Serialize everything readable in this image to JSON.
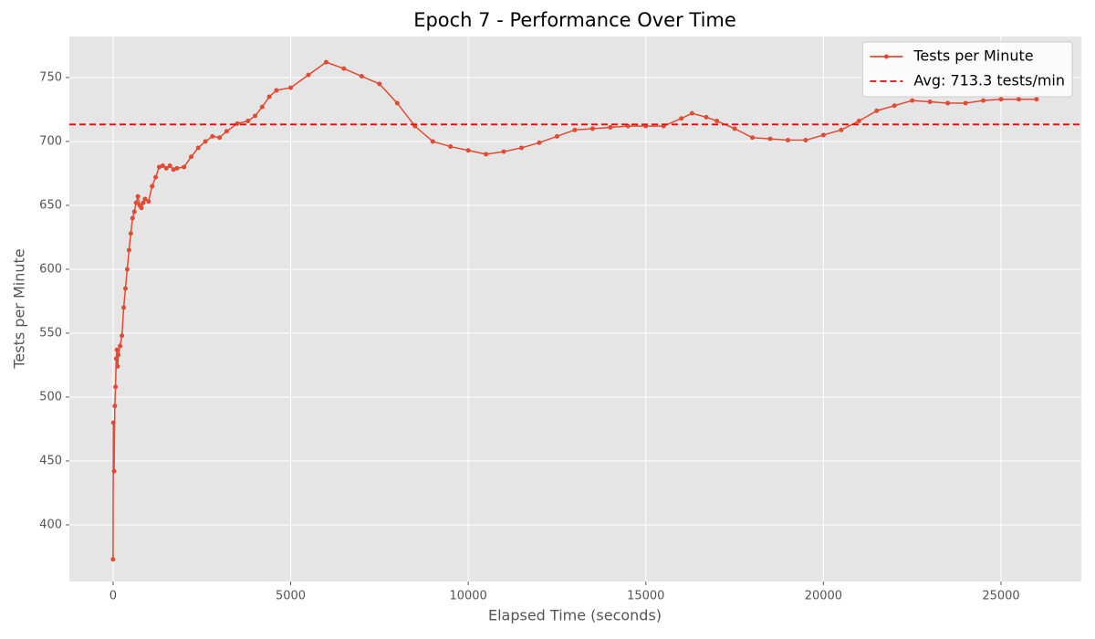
{
  "chart_data": {
    "type": "line",
    "title": "Epoch 7 - Performance Over Time",
    "x_label": "Elapsed Time (seconds)",
    "y_label": "Tests per Minute",
    "x": [
      0,
      10,
      30,
      50,
      70,
      90,
      110,
      130,
      150,
      200,
      250,
      300,
      350,
      400,
      450,
      500,
      550,
      600,
      650,
      700,
      750,
      800,
      850,
      900,
      1000,
      1100,
      1200,
      1300,
      1400,
      1500,
      1600,
      1700,
      1800,
      2000,
      2200,
      2400,
      2600,
      2800,
      3000,
      3200,
      3500,
      3800,
      4000,
      4200,
      4400,
      4600,
      5000,
      5500,
      6000,
      6500,
      7000,
      7500,
      8000,
      8500,
      9000,
      9500,
      10000,
      10500,
      11000,
      11500,
      12000,
      12500,
      13000,
      13500,
      14000,
      14500,
      15000,
      15500,
      16000,
      16300,
      16700,
      17000,
      17500,
      18000,
      18500,
      19000,
      19500,
      20000,
      20500,
      21000,
      21500,
      22000,
      22500,
      23000,
      23500,
      24000,
      24500,
      25000,
      25500,
      26000
    ],
    "series": [
      {
        "name": "Tests per Minute",
        "color": "#E24A33",
        "values": [
          373,
          480,
          442,
          493,
          508,
          530,
          537,
          524,
          533,
          540,
          548,
          570,
          585,
          600,
          615,
          628,
          640,
          645,
          652,
          657,
          650,
          648,
          652,
          655,
          653,
          665,
          672,
          680,
          681,
          679,
          681,
          678,
          679,
          680,
          688,
          695,
          700,
          704,
          703,
          708,
          714,
          716,
          720,
          727,
          735,
          740,
          742,
          752,
          762,
          757,
          751,
          745,
          730,
          712,
          700,
          696,
          693,
          690,
          692,
          695,
          699,
          704,
          709,
          710,
          711,
          712,
          712,
          712,
          718,
          722,
          719,
          716,
          710,
          703,
          702,
          701,
          701,
          705,
          709,
          716,
          724,
          728,
          732,
          731,
          730,
          730,
          732,
          733,
          733,
          733
        ]
      }
    ],
    "reference_lines": [
      {
        "name": "Avg: 713.3 tests/min",
        "value": 713.3,
        "color": "#ff0000",
        "dashed": true
      }
    ],
    "xlim": [
      -1230,
      27260
    ],
    "ylim": [
      355.7,
      782.1
    ],
    "xticks": [
      0,
      5000,
      10000,
      15000,
      20000,
      25000
    ],
    "yticks": [
      400,
      450,
      500,
      550,
      600,
      650,
      700,
      750
    ],
    "grid": true,
    "legend": "upper right"
  }
}
